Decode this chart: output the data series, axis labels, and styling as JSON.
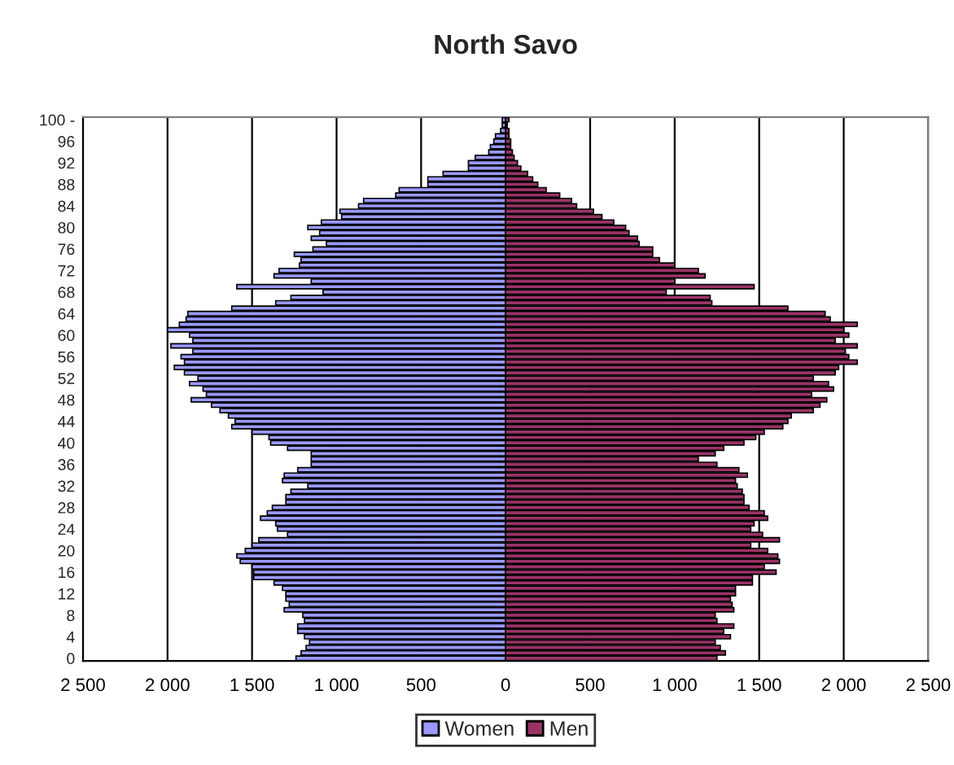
{
  "chart_data": {
    "type": "bar",
    "orientation": "horizontal",
    "title": "North Savo",
    "categories": [
      "100 -",
      null,
      null,
      null,
      "96",
      null,
      null,
      null,
      "92",
      null,
      null,
      null,
      "88",
      null,
      null,
      null,
      "84",
      null,
      null,
      null,
      "80",
      null,
      null,
      null,
      "76",
      null,
      null,
      null,
      "72",
      null,
      null,
      null,
      "68",
      null,
      null,
      null,
      "64",
      null,
      null,
      null,
      "60",
      null,
      null,
      null,
      "56",
      null,
      null,
      null,
      "52",
      null,
      null,
      null,
      "48",
      null,
      null,
      null,
      "44",
      null,
      null,
      null,
      "40",
      null,
      null,
      null,
      "36",
      null,
      null,
      null,
      "32",
      null,
      null,
      null,
      "28",
      null,
      null,
      null,
      "24",
      null,
      null,
      null,
      "20",
      null,
      null,
      null,
      "16",
      null,
      null,
      null,
      "12",
      null,
      null,
      null,
      "8",
      null,
      null,
      null,
      "4",
      null,
      null,
      null,
      "0"
    ],
    "series": [
      {
        "name": "Women",
        "color": "#9999ff",
        "values": [
          -20,
          -20,
          -30,
          -60,
          -70,
          -90,
          -100,
          -180,
          -220,
          -220,
          -370,
          -460,
          -460,
          -630,
          -650,
          -840,
          -870,
          -980,
          -970,
          -1090,
          -1170,
          -1100,
          -1150,
          -1060,
          -1140,
          -1250,
          -1210,
          -1220,
          -1340,
          -1370,
          -1150,
          -1590,
          -1080,
          -1270,
          -1360,
          -1620,
          -1880,
          -1890,
          -1930,
          -2000,
          -1870,
          -1850,
          -1980,
          -1850,
          -1920,
          -1900,
          -1960,
          -1900,
          -1820,
          -1870,
          -1790,
          -1770,
          -1860,
          -1740,
          -1690,
          -1640,
          -1600,
          -1620,
          -1500,
          -1400,
          -1390,
          -1290,
          -1150,
          -1150,
          -1150,
          -1230,
          -1310,
          -1320,
          -1170,
          -1270,
          -1300,
          -1300,
          -1380,
          -1410,
          -1450,
          -1360,
          -1350,
          -1290,
          -1460,
          -1500,
          -1540,
          -1590,
          -1570,
          -1500,
          -1490,
          -1490,
          -1370,
          -1320,
          -1300,
          -1300,
          -1280,
          -1310,
          -1200,
          -1190,
          -1230,
          -1230,
          -1190,
          -1160,
          -1180,
          -1210,
          -1240
        ]
      },
      {
        "name": "Men",
        "color": "#993366",
        "values": [
          20,
          10,
          20,
          20,
          30,
          30,
          40,
          50,
          70,
          90,
          130,
          160,
          190,
          240,
          320,
          390,
          420,
          520,
          570,
          640,
          710,
          730,
          780,
          790,
          870,
          870,
          910,
          1000,
          1140,
          1180,
          1000,
          1470,
          950,
          1210,
          1220,
          1670,
          1890,
          1920,
          2080,
          2000,
          2030,
          1950,
          2080,
          2010,
          2030,
          2080,
          1970,
          1950,
          1820,
          1910,
          1940,
          1810,
          1900,
          1860,
          1820,
          1690,
          1670,
          1640,
          1530,
          1480,
          1410,
          1290,
          1240,
          1140,
          1250,
          1380,
          1430,
          1360,
          1370,
          1400,
          1410,
          1410,
          1440,
          1530,
          1550,
          1470,
          1450,
          1520,
          1620,
          1450,
          1550,
          1610,
          1620,
          1530,
          1600,
          1460,
          1460,
          1360,
          1360,
          1330,
          1340,
          1350,
          1240,
          1250,
          1350,
          1290,
          1330,
          1240,
          1270,
          1300,
          1250
        ]
      }
    ],
    "xlim": [
      -2500,
      2500
    ],
    "xticks": [
      {
        "value": -2500,
        "label": "2 500"
      },
      {
        "value": -2000,
        "label": "2 000"
      },
      {
        "value": -1500,
        "label": "1 500"
      },
      {
        "value": -1000,
        "label": "1 000"
      },
      {
        "value": -500,
        "label": "500"
      },
      0,
      500,
      {
        "value": 1000,
        "label": "1 000"
      },
      {
        "value": 1500,
        "label": "1 500"
      },
      {
        "value": 2000,
        "label": "2 000"
      },
      {
        "value": 2500,
        "label": "2 500"
      }
    ],
    "grid": "x",
    "legend": "bottom",
    "stacked": true
  }
}
